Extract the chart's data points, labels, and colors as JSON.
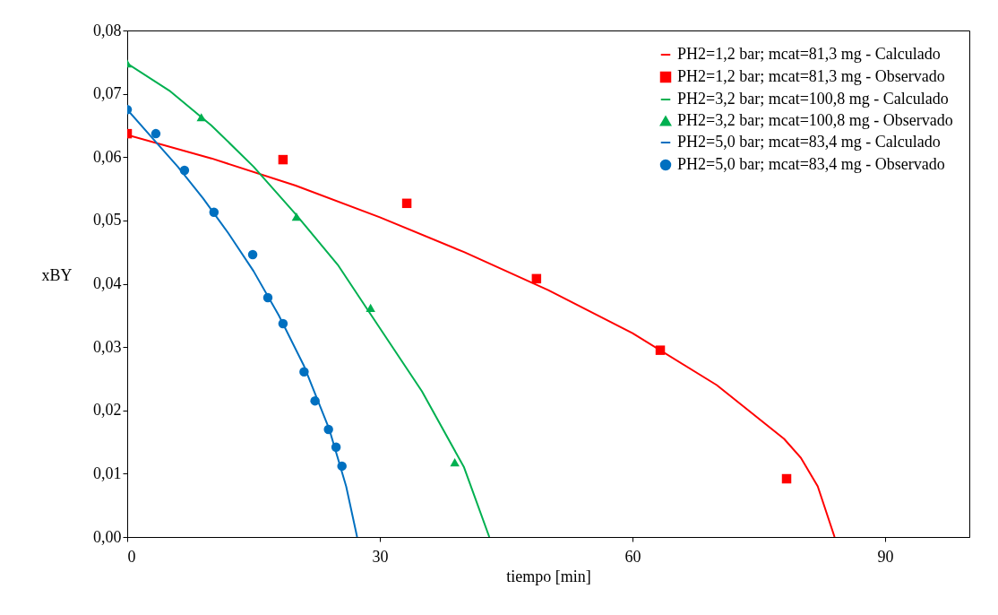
{
  "chart_data": {
    "type": "line",
    "xlabel": "tiempo [min]",
    "ylabel": "xBY",
    "xlim": [
      0,
      100
    ],
    "xticks": [
      0,
      30,
      60,
      90
    ],
    "ylim": [
      0,
      0.08
    ],
    "yticks": [
      {
        "value": 0,
        "label": "0,00"
      },
      {
        "value": 0.01,
        "label": "0,01"
      },
      {
        "value": 0.02,
        "label": "0,02"
      },
      {
        "value": 0.03,
        "label": "0,03"
      },
      {
        "value": 0.04,
        "label": "0,04"
      },
      {
        "value": 0.05,
        "label": "0,05"
      },
      {
        "value": 0.06,
        "label": "0,06"
      },
      {
        "value": 0.07,
        "label": "0,07"
      },
      {
        "value": 0.08,
        "label": "0,08"
      }
    ],
    "grid": false,
    "legend": "top right",
    "series": [
      {
        "name": "PH2=1,2 bar; mcat=81,3 mg - Calculado",
        "type": "line",
        "color": "#ff0000",
        "marker": "none",
        "x": [
          0,
          10,
          20,
          30,
          40,
          50,
          60,
          70,
          78,
          80,
          82,
          84
        ],
        "values": [
          0.0635,
          0.0598,
          0.0555,
          0.0505,
          0.045,
          0.039,
          0.0322,
          0.024,
          0.0155,
          0.0125,
          0.008,
          0
        ]
      },
      {
        "name": "PH2=1,2 bar; mcat=81,3 mg - Observado",
        "type": "scatter",
        "color": "#ff0000",
        "marker": "square",
        "x": [
          0,
          18.5,
          33.2,
          48.6,
          63.3,
          78.3
        ],
        "values": [
          0.0637,
          0.0596,
          0.0527,
          0.0408,
          0.0295,
          0.0092
        ]
      },
      {
        "name": "PH2=3,2 bar; mcat=100,8 mg - Calculado",
        "type": "line",
        "color": "#00b050",
        "marker": "none",
        "x": [
          0,
          5,
          10,
          15,
          20,
          25,
          28,
          30,
          35,
          40,
          43
        ],
        "values": [
          0.0748,
          0.0705,
          0.065,
          0.0585,
          0.051,
          0.043,
          0.037,
          0.033,
          0.023,
          0.011,
          0
        ]
      },
      {
        "name": "PH2=3,2 bar; mcat=100,8 mg - Observado",
        "type": "scatter",
        "color": "#00b050",
        "marker": "triangle",
        "x": [
          0,
          8.8,
          20.1,
          28.9,
          38.9
        ],
        "values": [
          0.0748,
          0.0663,
          0.0506,
          0.0362,
          0.0118
        ]
      },
      {
        "name": "PH2=5,0 bar; mcat=83,4 mg - Calculado",
        "type": "line",
        "color": "#0070c0",
        "marker": "none",
        "x": [
          0,
          3,
          6,
          9,
          12,
          15,
          18,
          21,
          24,
          26,
          27.3
        ],
        "values": [
          0.0675,
          0.063,
          0.0585,
          0.0535,
          0.048,
          0.042,
          0.035,
          0.027,
          0.017,
          0.008,
          0
        ]
      },
      {
        "name": "PH2=5,0 bar; mcat=83,4 mg - Observado",
        "type": "scatter",
        "color": "#0070c0",
        "marker": "circle",
        "x": [
          0,
          3.4,
          6.8,
          10.3,
          14.9,
          16.7,
          18.5,
          21.0,
          22.3,
          23.9,
          24.8,
          25.5
        ],
        "values": [
          0.0675,
          0.0637,
          0.0579,
          0.0513,
          0.0446,
          0.0378,
          0.0337,
          0.0261,
          0.0215,
          0.017,
          0.0142,
          0.0112
        ]
      }
    ]
  }
}
